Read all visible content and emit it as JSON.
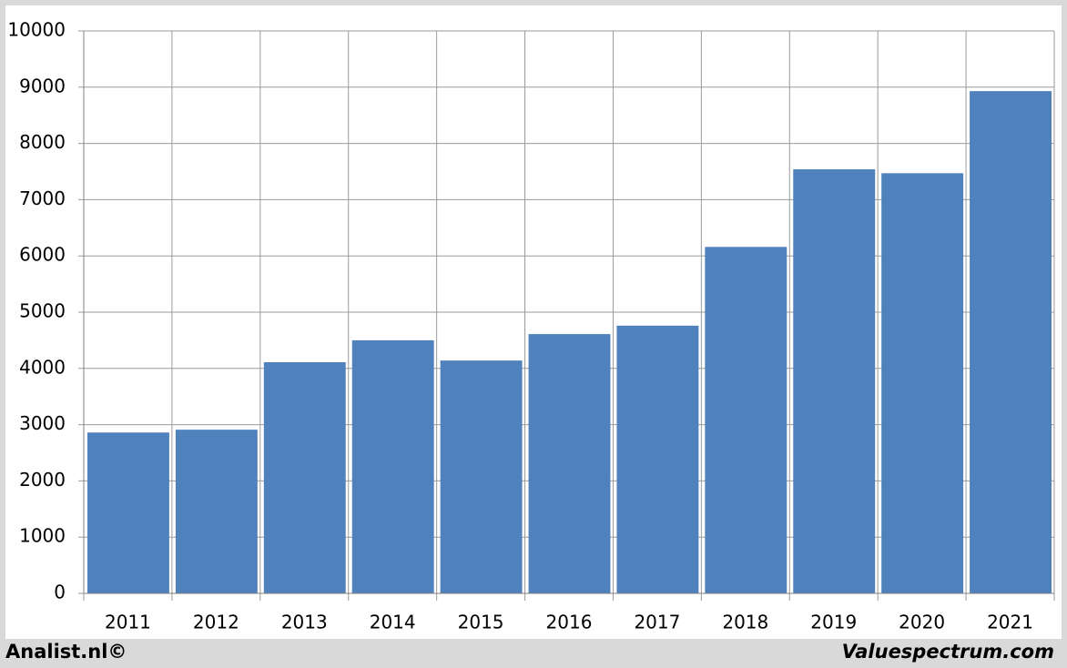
{
  "chart_data": {
    "type": "bar",
    "categories": [
      "2011",
      "2012",
      "2013",
      "2014",
      "2015",
      "2016",
      "2017",
      "2018",
      "2019",
      "2020",
      "2021"
    ],
    "values": [
      2860,
      2910,
      4110,
      4500,
      4140,
      4610,
      4760,
      6160,
      7540,
      7470,
      8930
    ],
    "color": "#4f81bd",
    "ylim": [
      0,
      10000
    ],
    "yticks": [
      0,
      1000,
      2000,
      3000,
      4000,
      5000,
      6000,
      7000,
      8000,
      9000,
      10000
    ],
    "grid": true,
    "credit_left": "Analist.nl©",
    "credit_right": "Valuespectrum.com"
  }
}
